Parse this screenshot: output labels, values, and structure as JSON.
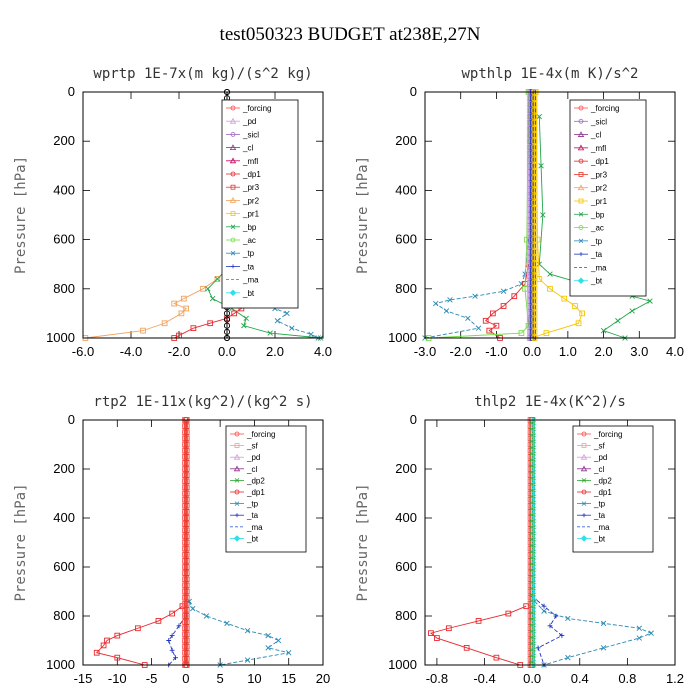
{
  "figure": {
    "title": "test050323  BUDGET at238E,27N"
  },
  "colors": {
    "forcing": "#ff4b4b",
    "sf": "#e8a0a0",
    "pd": "#d19ad9",
    "sicl": "#9a66c4",
    "cl": "#8c2f8c",
    "mfl": "#c6005a",
    "dp1": "#e8282d",
    "dp2": "#2aa52a",
    "pr3": "#e63a2e",
    "pr2": "#f2a15a",
    "pr1": "#f5c700",
    "bp": "#22a64a",
    "ac": "#77dd44",
    "tp": "#2a8ab5",
    "ta": "#2233bb",
    "ma": "#3d6bd6",
    "bt": "#2ee0e8",
    "black": "#000000"
  },
  "chart_data": [
    {
      "type": "line",
      "title": "wprtp  1E-7x(m kg)/(s^2 kg)",
      "xlabel": "",
      "ylabel": "Pressure [hPa]",
      "xlim": [
        -6.0,
        4.0
      ],
      "ylim": [
        1000,
        0
      ],
      "xticks": [
        -6.0,
        -4.0,
        -2.0,
        0.0,
        2.0,
        4.0
      ],
      "xtick_labels": [
        "-6.0",
        "-4.0",
        "-2.0",
        "0.0",
        "2.0",
        "4.0"
      ],
      "yticks": [
        0,
        200,
        400,
        600,
        800,
        1000
      ],
      "ytick_labels": [
        "0",
        "200",
        "400",
        "600",
        "800",
        "1000"
      ],
      "legend": [
        "_forcing",
        "_pd",
        "_sicl",
        "_cl",
        "_mfl",
        "_dp1",
        "_pr3",
        "_pr2",
        "_pr1",
        "_bp",
        "_ac",
        "_tp",
        "_ta",
        "_ma",
        "_bt"
      ],
      "series": [
        {
          "name": "_tp",
          "color": "tp",
          "marker": "x",
          "dash": true,
          "x": [
            0.05,
            0.1,
            0.3,
            0.8,
            1.4,
            2.0,
            2.5,
            2.1,
            2.7,
            3.5,
            3.8
          ],
          "y": [
            700,
            740,
            780,
            820,
            860,
            880,
            900,
            930,
            960,
            985,
            1000
          ]
        },
        {
          "name": "_pr2",
          "color": "pr2",
          "marker": "sq",
          "dash": false,
          "x": [
            0.0,
            -0.4,
            -1.0,
            -1.8,
            -2.2,
            -1.7,
            -1.9,
            -2.6,
            -3.5,
            -5.9
          ],
          "y": [
            720,
            760,
            800,
            840,
            860,
            880,
            900,
            940,
            970,
            1000
          ]
        },
        {
          "name": "_bp",
          "color": "bp",
          "marker": "x",
          "dash": false,
          "x": [
            0.0,
            -0.4,
            -0.8,
            -0.6,
            0.2,
            0.8,
            0.7,
            1.8,
            3.9
          ],
          "y": [
            720,
            760,
            800,
            840,
            880,
            920,
            950,
            980,
            1000
          ]
        },
        {
          "name": "_dp1",
          "color": "dp1",
          "marker": "sq",
          "dash": false,
          "x": [
            0.1,
            0.3,
            0.5,
            0.6,
            0.3,
            0.0,
            -0.7,
            -1.4,
            -2.0,
            -2.2
          ],
          "y": [
            780,
            820,
            850,
            880,
            900,
            920,
            940,
            960,
            990,
            1000
          ]
        },
        {
          "name": "_forcing",
          "color": "black",
          "marker": "o",
          "dash": false,
          "x": [
            0.0,
            0.0
          ],
          "y": [
            0,
            1000
          ]
        }
      ]
    },
    {
      "type": "line",
      "title": "wpthlp  1E-4x(m K)/s^2",
      "xlabel": "",
      "ylabel": "Pressure [hPa]",
      "xlim": [
        -3.0,
        4.0
      ],
      "ylim": [
        1000,
        0
      ],
      "xticks": [
        -3.0,
        -2.0,
        -1.0,
        0.0,
        1.0,
        2.0,
        3.0,
        4.0
      ],
      "xtick_labels": [
        "-3.0",
        "-2.0",
        "-1.0",
        "0.0",
        "1.0",
        "2.0",
        "3.0",
        "4.0"
      ],
      "yticks": [
        0,
        200,
        400,
        600,
        800,
        1000
      ],
      "ytick_labels": [
        "0",
        "200",
        "400",
        "600",
        "800",
        "1000"
      ],
      "legend": [
        "_forcing",
        "_sicl",
        "_cl",
        "_mfl",
        "_dp1",
        "_pr3",
        "_pr2",
        "_pr1",
        "_bp",
        "_ac",
        "_tp",
        "_ta",
        "_ma",
        "_bt"
      ],
      "series": [
        {
          "name": "_bp",
          "color": "bp",
          "marker": "x",
          "dash": false,
          "x": [
            0.2,
            0.25,
            0.3,
            0.2,
            0.5,
            1.2,
            2.0,
            2.8,
            3.3,
            2.8,
            2.4,
            2.0,
            2.6
          ],
          "y": [
            100,
            300,
            500,
            700,
            740,
            770,
            800,
            830,
            850,
            890,
            930,
            970,
            1000
          ]
        },
        {
          "name": "_pr1",
          "color": "pr1",
          "marker": "sq",
          "dash": false,
          "x": [
            0.1,
            0.15,
            0.2,
            0.5,
            0.9,
            1.2,
            1.4,
            1.3,
            0.4,
            0.0
          ],
          "y": [
            0,
            600,
            760,
            800,
            840,
            870,
            900,
            940,
            980,
            1000
          ]
        },
        {
          "name": "_tp",
          "color": "tp",
          "marker": "x",
          "dash": true,
          "x": [
            -0.1,
            -0.2,
            -0.3,
            -0.8,
            -1.6,
            -2.3,
            -2.7,
            -2.4,
            -1.8,
            -1.5,
            -3.0
          ],
          "y": [
            600,
            740,
            780,
            810,
            830,
            845,
            860,
            890,
            920,
            960,
            1000
          ]
        },
        {
          "name": "_dp1",
          "color": "dp1",
          "marker": "sq",
          "dash": false,
          "x": [
            -0.1,
            -0.2,
            -0.5,
            -0.8,
            -1.1,
            -1.3,
            -1.0,
            -1.2,
            -0.9
          ],
          "y": [
            700,
            780,
            830,
            870,
            900,
            930,
            950,
            970,
            1000
          ]
        },
        {
          "name": "_ac",
          "color": "ac",
          "marker": "sq",
          "dash": false,
          "x": [
            -0.1,
            -0.15,
            -0.2,
            -0.1,
            -0.3,
            -2.9
          ],
          "y": [
            0,
            600,
            800,
            950,
            980,
            1000
          ]
        },
        {
          "name": "_forcing",
          "color": "pd",
          "marker": "o",
          "dash": false,
          "x": [
            0.0,
            0.0
          ],
          "y": [
            0,
            1000
          ]
        }
      ]
    },
    {
      "type": "line",
      "title": "rtp2  1E-11x(kg^2)/(kg^2 s)",
      "xlabel": "",
      "ylabel": "Pressure [hPa]",
      "xlim": [
        -15,
        20
      ],
      "ylim": [
        1000,
        0
      ],
      "xticks": [
        -15,
        -10,
        -5,
        0,
        5,
        10,
        15,
        20
      ],
      "xtick_labels": [
        "-15",
        "-10",
        "-5",
        "0",
        "5",
        "10",
        "15",
        "20"
      ],
      "yticks": [
        0,
        200,
        400,
        600,
        800,
        1000
      ],
      "ytick_labels": [
        "0",
        "200",
        "400",
        "600",
        "800",
        "1000"
      ],
      "legend": [
        "_forcing",
        "_sf",
        "_pd",
        "_cl",
        "_dp2",
        "_dp1",
        "_tp",
        "_ta",
        "_ma",
        "_bt"
      ],
      "series": [
        {
          "name": "_tp",
          "color": "tp",
          "marker": "x",
          "dash": true,
          "x": [
            0.5,
            1.0,
            3.0,
            6.0,
            9.0,
            12.0,
            13.5,
            12.0,
            15.0,
            9.0,
            5.0
          ],
          "y": [
            740,
            770,
            800,
            830,
            860,
            880,
            900,
            930,
            950,
            980,
            1000
          ]
        },
        {
          "name": "_dp1",
          "color": "dp1",
          "marker": "sq",
          "dash": false,
          "x": [
            -0.5,
            -2.0,
            -4.0,
            -7.0,
            -10.0,
            -11.5,
            -12.0,
            -13.0,
            -10.0,
            -6.0
          ],
          "y": [
            760,
            790,
            820,
            850,
            880,
            900,
            920,
            950,
            970,
            1000
          ]
        },
        {
          "name": "_ta",
          "color": "ta",
          "marker": "+",
          "dash": true,
          "x": [
            0.0,
            -1.0,
            -2.0,
            -2.5,
            -2.0,
            -1.5,
            -2.5
          ],
          "y": [
            800,
            840,
            880,
            900,
            940,
            970,
            1000
          ]
        },
        {
          "name": "_forcing",
          "color": "forcing",
          "marker": "o",
          "dash": false,
          "x": [
            0.0,
            0.0
          ],
          "y": [
            0,
            1000
          ]
        }
      ]
    },
    {
      "type": "line",
      "title": "thlp2  1E-4x(K^2)/s",
      "xlabel": "",
      "ylabel": "Pressure [hPa]",
      "xlim": [
        -0.9,
        1.2
      ],
      "ylim": [
        1000,
        0
      ],
      "xticks": [
        -0.8,
        -0.4,
        0.0,
        0.4,
        0.8,
        1.2
      ],
      "xtick_labels": [
        "-0.8",
        "-0.4",
        "0.0",
        "0.4",
        "0.8",
        "1.2"
      ],
      "yticks": [
        0,
        200,
        400,
        600,
        800,
        1000
      ],
      "ytick_labels": [
        "0",
        "200",
        "400",
        "600",
        "800",
        "1000"
      ],
      "legend": [
        "_forcing",
        "_sf",
        "_pd",
        "_cl",
        "_dp2",
        "_dp1",
        "_tp",
        "_ta",
        "_ma",
        "_bt"
      ],
      "series": [
        {
          "name": "_tp",
          "color": "tp",
          "marker": "x",
          "dash": true,
          "x": [
            0.02,
            0.1,
            0.3,
            0.6,
            0.9,
            1.0,
            0.9,
            0.6,
            0.3,
            0.1
          ],
          "y": [
            740,
            780,
            810,
            830,
            850,
            870,
            890,
            930,
            970,
            1000
          ]
        },
        {
          "name": "_dp1",
          "color": "dp1",
          "marker": "sq",
          "dash": false,
          "x": [
            -0.05,
            -0.2,
            -0.45,
            -0.7,
            -0.85,
            -0.8,
            -0.55,
            -0.3,
            -0.1
          ],
          "y": [
            760,
            790,
            820,
            850,
            870,
            890,
            930,
            970,
            1000
          ]
        },
        {
          "name": "_ta",
          "color": "ta",
          "marker": "+",
          "dash": true,
          "x": [
            0.0,
            0.1,
            0.2,
            0.15,
            0.25,
            0.05,
            0.1
          ],
          "y": [
            720,
            760,
            800,
            840,
            880,
            930,
            1000
          ]
        },
        {
          "name": "_forcing",
          "color": "forcing",
          "marker": "o",
          "dash": false,
          "x": [
            0.0,
            0.0
          ],
          "y": [
            0,
            1000
          ]
        }
      ]
    }
  ]
}
